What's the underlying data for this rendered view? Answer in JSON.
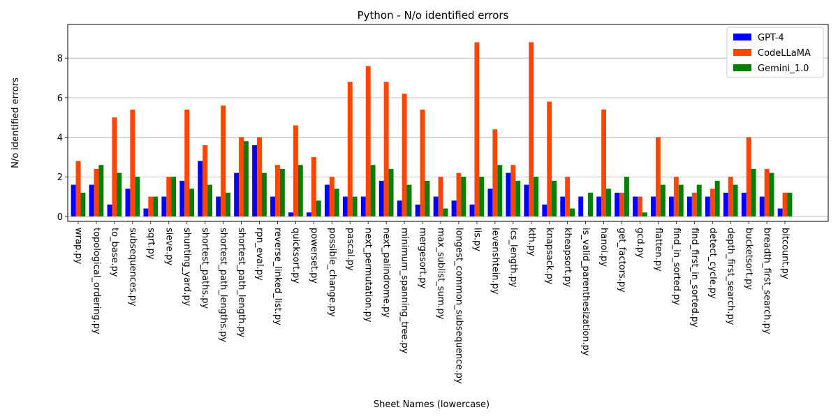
{
  "chart_data": {
    "type": "bar",
    "title": "Python - N/o identified errors",
    "xlabel": "Sheet Names (lowercase)",
    "ylabel": "N/o identified errors",
    "ylim": [
      -0.25,
      9.7
    ],
    "yticks": [
      0,
      2,
      4,
      6,
      8
    ],
    "grid": "y",
    "legend_position": "top-right",
    "categories": [
      "wrap.py",
      "topological_ordering.py",
      "to_base.py",
      "subsequences.py",
      "sqrt.py",
      "sieve.py",
      "shunting_yard.py",
      "shortest_paths.py",
      "shortest_path_lengths.py",
      "shortest_path_length.py",
      "rpn_eval.py",
      "reverse_linked_list.py",
      "quicksort.py",
      "powerset.py",
      "possible_change.py",
      "pascal.py",
      "next_permutation.py",
      "next_palindrome.py",
      "minimum_spanning_tree.py",
      "mergesort.py",
      "max_sublist_sum.py",
      "longest_common_subsequence.py",
      "lis.py",
      "levenshtein.py",
      "lcs_length.py",
      "kth.py",
      "knapsack.py",
      "kheapsort.py",
      "is_valid_parenthesization.py",
      "hanoi.py",
      "get_factors.py",
      "gcd.py",
      "flatten.py",
      "find_in_sorted.py",
      "find_first_in_sorted.py",
      "detect_cycle.py",
      "depth_first_search.py",
      "bucketsort.py",
      "breadth_first_search.py",
      "bitcount.py"
    ],
    "series": [
      {
        "name": "GPT-4",
        "color": "#0000ff",
        "values": [
          1.6,
          1.6,
          0.6,
          1.4,
          0.4,
          1.0,
          1.8,
          2.8,
          1.0,
          2.2,
          3.6,
          1.0,
          0.2,
          0.2,
          1.6,
          1.0,
          1.0,
          1.8,
          0.8,
          0.6,
          1.0,
          0.8,
          0.6,
          1.4,
          2.2,
          1.6,
          0.6,
          1.0,
          1.0,
          1.0,
          1.2,
          1.0,
          1.0,
          1.0,
          1.0,
          1.0,
          1.2,
          1.2,
          1.0,
          0.4
        ]
      },
      {
        "name": "CodeLLaMA",
        "color": "#ff4500",
        "values": [
          2.8,
          2.4,
          5.0,
          5.4,
          1.0,
          2.0,
          5.4,
          3.6,
          5.6,
          4.0,
          4.0,
          2.6,
          4.6,
          3.0,
          2.0,
          6.8,
          7.6,
          6.8,
          6.2,
          5.4,
          2.0,
          2.2,
          8.8,
          4.4,
          2.6,
          8.8,
          5.8,
          2.0,
          0.0,
          5.4,
          1.2,
          1.0,
          4.0,
          2.0,
          1.2,
          1.4,
          2.0,
          4.0,
          2.4,
          1.2
        ]
      },
      {
        "name": "Gemini_1.0",
        "color": "#008000",
        "values": [
          1.2,
          2.6,
          2.2,
          2.0,
          1.0,
          2.0,
          1.4,
          1.6,
          1.2,
          3.8,
          2.2,
          2.4,
          2.6,
          0.8,
          1.4,
          1.0,
          2.6,
          2.4,
          1.6,
          1.8,
          0.4,
          2.0,
          2.0,
          2.6,
          1.8,
          2.0,
          1.8,
          0.4,
          1.2,
          1.4,
          2.0,
          0.2,
          1.6,
          1.6,
          1.6,
          1.8,
          1.6,
          2.4,
          2.2,
          1.2
        ]
      }
    ]
  }
}
